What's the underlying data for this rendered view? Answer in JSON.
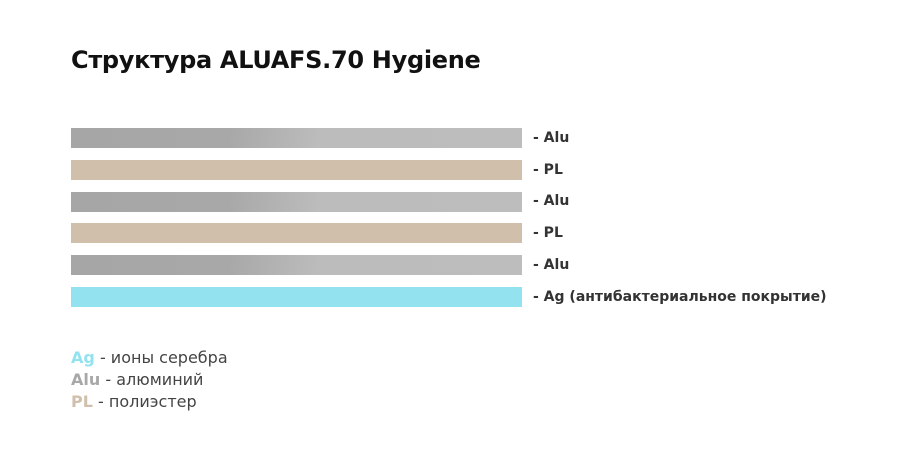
{
  "header": {
    "title": "Структура ALUAFS.70 Hygiene"
  },
  "layers": [
    {
      "label": "- Alu"
    },
    {
      "label": "- PL"
    },
    {
      "label": "- Alu"
    },
    {
      "label": "- PL"
    },
    {
      "label": "- Alu"
    },
    {
      "label": "- Ag (антибактериальное покрытие)"
    }
  ],
  "legend": [
    {
      "abbr": "Ag",
      "text": "- ионы серебра"
    },
    {
      "abbr": "Alu",
      "text": "- алюминий"
    },
    {
      "abbr": "PL",
      "text": "- полиэстер"
    }
  ]
}
